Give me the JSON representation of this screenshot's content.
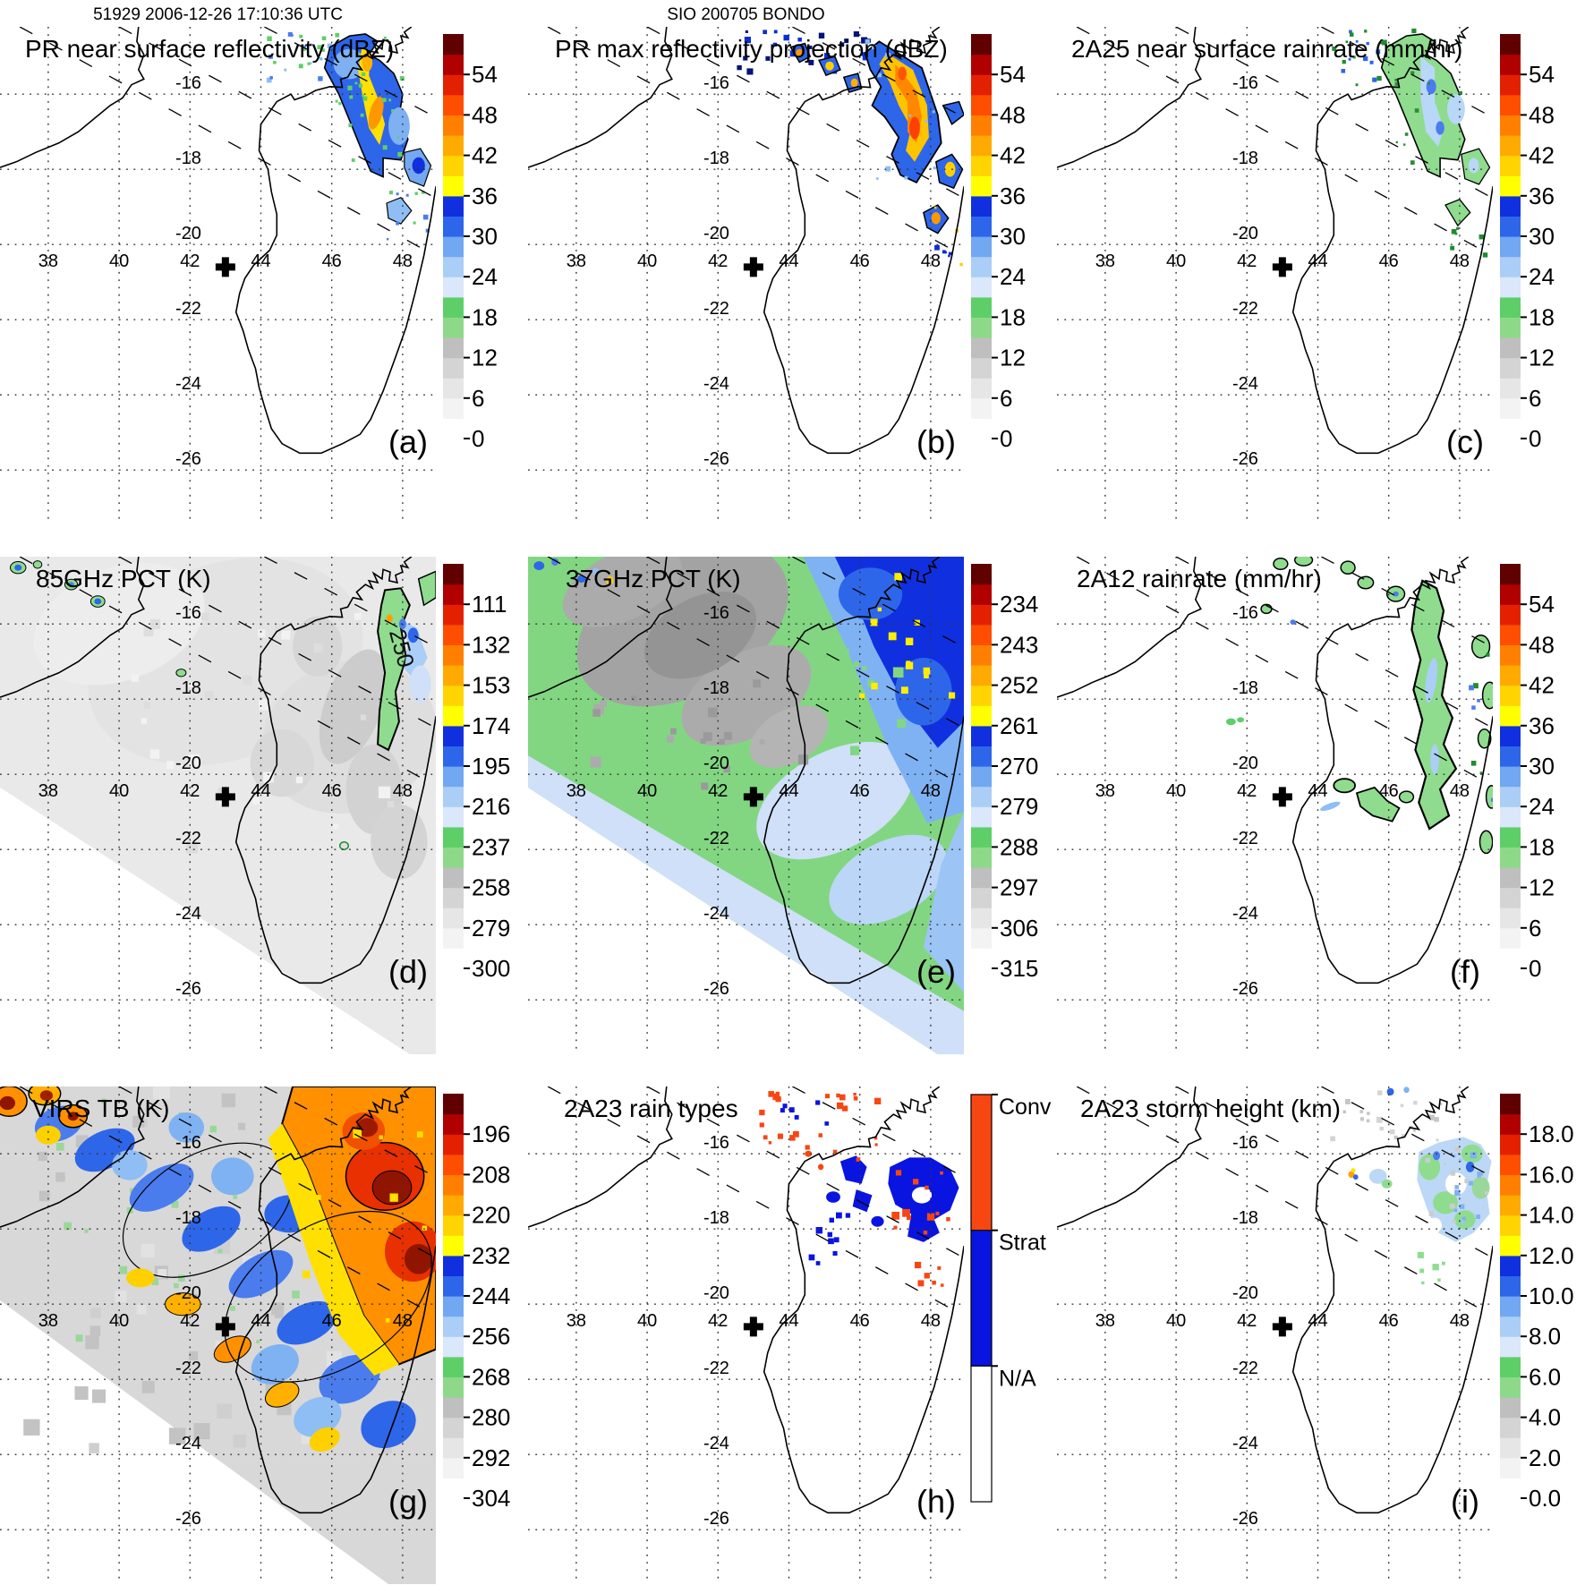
{
  "header": {
    "left": "51929 2006-12-26 17:10:36 UTC",
    "center": "SIO 200705 BONDO"
  },
  "axes": {
    "lon_labels": [
      "38",
      "40",
      "42",
      "44",
      "46",
      "48"
    ],
    "lat_labels": [
      "-16",
      "-18",
      "-20",
      "-22",
      "-24",
      "-26"
    ]
  },
  "marker": {
    "symbol": "+",
    "lon": 43.0,
    "lat": -20.6
  },
  "colorbar_palette": [
    "#ffffff",
    "#f3f3f3",
    "#e6e6e6",
    "#d4d4d4",
    "#bfbfbf",
    "#8ed989",
    "#5ecf68",
    "#dbe7fa",
    "#aacef6",
    "#72a7f1",
    "#2e66e9",
    "#1030df",
    "#ffff00",
    "#ffd400",
    "#ffaa00",
    "#ff7f00",
    "#ff4e00",
    "#e32100",
    "#b00000",
    "#600000"
  ],
  "rain_type_colors": {
    "conv": "#f84612",
    "strat": "#0a14e0",
    "na": "#ffffff"
  },
  "panels": [
    {
      "id": "a",
      "letter": "(a)",
      "title": "PR near surface reflectivity (dBZ)",
      "colorbar": {
        "type": "gradient",
        "labels": [
          "54",
          "48",
          "42",
          "36",
          "30",
          "24",
          "18",
          "12",
          "6",
          "0"
        ]
      }
    },
    {
      "id": "b",
      "letter": "(b)",
      "title": "PR max reflectivity projection (dBZ)",
      "colorbar": {
        "type": "gradient",
        "labels": [
          "54",
          "48",
          "42",
          "36",
          "30",
          "24",
          "18",
          "12",
          "6",
          "0"
        ]
      }
    },
    {
      "id": "c",
      "letter": "(c)",
      "title": "2A25 near surface rainrate (mm/hr)",
      "colorbar": {
        "type": "gradient",
        "labels": [
          "54",
          "48",
          "42",
          "36",
          "30",
          "24",
          "18",
          "12",
          "6",
          "0"
        ]
      }
    },
    {
      "id": "d",
      "letter": "(d)",
      "title": "85GHz PCT (K)",
      "contour_label": "250",
      "colorbar": {
        "type": "gradient",
        "labels": [
          "111",
          "132",
          "153",
          "174",
          "195",
          "216",
          "237",
          "258",
          "279",
          "300"
        ]
      }
    },
    {
      "id": "e",
      "letter": "(e)",
      "title": "37GHz PCT (K)",
      "colorbar": {
        "type": "gradient",
        "labels": [
          "234",
          "243",
          "252",
          "261",
          "270",
          "279",
          "288",
          "297",
          "306",
          "315"
        ]
      }
    },
    {
      "id": "f",
      "letter": "(f)",
      "title": "2A12 rainrate (mm/hr)",
      "colorbar": {
        "type": "gradient",
        "labels": [
          "54",
          "48",
          "42",
          "36",
          "30",
          "24",
          "18",
          "12",
          "6",
          "0"
        ]
      }
    },
    {
      "id": "g",
      "letter": "(g)",
      "title": "VIRS TB (K)",
      "colorbar": {
        "type": "gradient",
        "labels": [
          "196",
          "208",
          "220",
          "232",
          "244",
          "256",
          "268",
          "280",
          "292",
          "304"
        ]
      }
    },
    {
      "id": "h",
      "letter": "(h)",
      "title": "2A23 rain types",
      "colorbar": {
        "type": "categorical",
        "labels": [
          "Conv",
          "Strat",
          "N/A"
        ]
      }
    },
    {
      "id": "i",
      "letter": "(i)",
      "title": "2A23 storm height (km)",
      "colorbar": {
        "type": "gradient",
        "labels": [
          "18.0",
          "16.0",
          "14.0",
          "12.0",
          "10.0",
          "8.0",
          "6.0",
          "4.0",
          "2.0",
          "0.0"
        ]
      }
    }
  ],
  "chart_data": [
    {
      "panel": "a",
      "type": "heatmap",
      "title": "PR near surface reflectivity (dBZ)",
      "units": "dBZ",
      "colorbar_ticks": [
        54,
        48,
        42,
        36,
        30,
        24,
        18,
        12,
        6,
        0
      ],
      "lon_range": [
        36.6,
        48.9
      ],
      "lat_range": [
        -27.4,
        -14.2
      ],
      "grid": {
        "lon": [
          38,
          40,
          42,
          44,
          46,
          48
        ],
        "lat": [
          -16,
          -18,
          -20,
          -22,
          -24,
          -26
        ]
      },
      "features": "Convective rainband with 36-48 dBZ yellow/orange core near 47E 15-18S over NE Madagascar, blue 24-36 dBZ fringe, scattered echoes to NW and SE inside narrow PR swath bounded by dashed lines"
    },
    {
      "panel": "b",
      "type": "heatmap",
      "title": "PR max reflectivity projection (dBZ)",
      "units": "dBZ",
      "colorbar_ticks": [
        54,
        48,
        42,
        36,
        30,
        24,
        18,
        12,
        6,
        0
      ],
      "lon_range": [
        36.6,
        48.9
      ],
      "lat_range": [
        -27.4,
        -14.2
      ],
      "features": "Same band as (a) but broader 40-48 dBZ orange core; many small dark-blue 30+ dBZ cells scattered along 14.5-15.5S"
    },
    {
      "panel": "c",
      "type": "heatmap",
      "title": "2A25 near surface rainrate (mm/hr)",
      "units": "mm/hr",
      "colorbar_ticks": [
        54,
        48,
        42,
        36,
        30,
        24,
        18,
        12,
        6,
        0
      ],
      "lon_range": [
        36.6,
        48.9
      ],
      "lat_range": [
        -27.4,
        -14.2
      ],
      "features": "Light rain 6-18 mm/hr green region matching the PR band, embedded 18-30 mm/hr pale blue patches"
    },
    {
      "panel": "d",
      "type": "heatmap",
      "title": "85GHz PCT (K)",
      "units": "K",
      "colorbar_ticks": [
        111,
        132,
        153,
        174,
        195,
        216,
        237,
        258,
        279,
        300
      ],
      "lon_range": [
        36.6,
        48.9
      ],
      "lat_range": [
        -27.4,
        -14.2
      ],
      "features": "Wide TMI swath of 270-300 K light gray; 237 K green band along 47.5E 15-19S with 195-216 K blue ice-scattering cells; 250 K contour labeled; few small depressed-PCT cells NW"
    },
    {
      "panel": "e",
      "type": "heatmap",
      "title": "37GHz PCT (K)",
      "units": "K",
      "colorbar_ticks": [
        234,
        243,
        252,
        261,
        270,
        279,
        288,
        297,
        306,
        315
      ],
      "lon_range": [
        36.6,
        48.9
      ],
      "lat_range": [
        -27.4,
        -14.2
      ],
      "features": "288 K green background, 297-306 K gray warm area center-west, 261-270 K dark blue region NE with yellow <261 K pixels, pale blue fringe along SE swath edge"
    },
    {
      "panel": "f",
      "type": "heatmap",
      "title": "2A12 rainrate (mm/hr)",
      "units": "mm/hr",
      "colorbar_ticks": [
        54,
        48,
        42,
        36,
        30,
        24,
        18,
        12,
        6,
        0
      ],
      "lon_range": [
        36.6,
        48.9
      ],
      "lat_range": [
        -27.4,
        -14.2
      ],
      "features": "Elongated 6-12 mm/hr green rain area over NE Madagascar 46.7-47.9E 15-21.5S, outlined patches near 14.5-15.5S and 20-21.5S, partial patches at east edge"
    },
    {
      "panel": "g",
      "type": "heatmap",
      "title": "VIRS TB (K)",
      "units": "K",
      "colorbar_ticks": [
        196,
        208,
        220,
        232,
        244,
        256,
        268,
        280,
        292,
        304
      ],
      "lon_range": [
        36.6,
        48.9
      ],
      "lat_range": [
        -27.4,
        -14.2
      ],
      "features": "Full IR scene: cold 196-220 K dark-red/orange cloud shield over 45-49E 14-21S and NW corner blobs, 232-256 K blue mottled ring, 268-304 K gray/green clear areas, black contours"
    },
    {
      "panel": "h",
      "type": "categorical-map",
      "title": "2A23 rain types",
      "categories": [
        "Conv",
        "Strat",
        "N/A"
      ],
      "category_colors": [
        "#f84612",
        "#0a14e0",
        "#ffffff"
      ],
      "features": "Large stratiform blue region 47-48.8E 16-18.4S with embedded convective orange pixels; scattered convective cells along 14.5-16S"
    },
    {
      "panel": "i",
      "type": "heatmap",
      "title": "2A23 storm height (km)",
      "units": "km",
      "colorbar_ticks": [
        18.0,
        16.0,
        14.0,
        12.0,
        10.0,
        8.0,
        6.0,
        4.0,
        2.0,
        0.0
      ],
      "lon_range": [
        36.6,
        48.9
      ],
      "lat_range": [
        -27.4,
        -14.2
      ],
      "features": "Storm heights 6-10 km pale blue with 6 km green patches over NE cluster, low 2-4 km gray speckles north of it"
    }
  ]
}
